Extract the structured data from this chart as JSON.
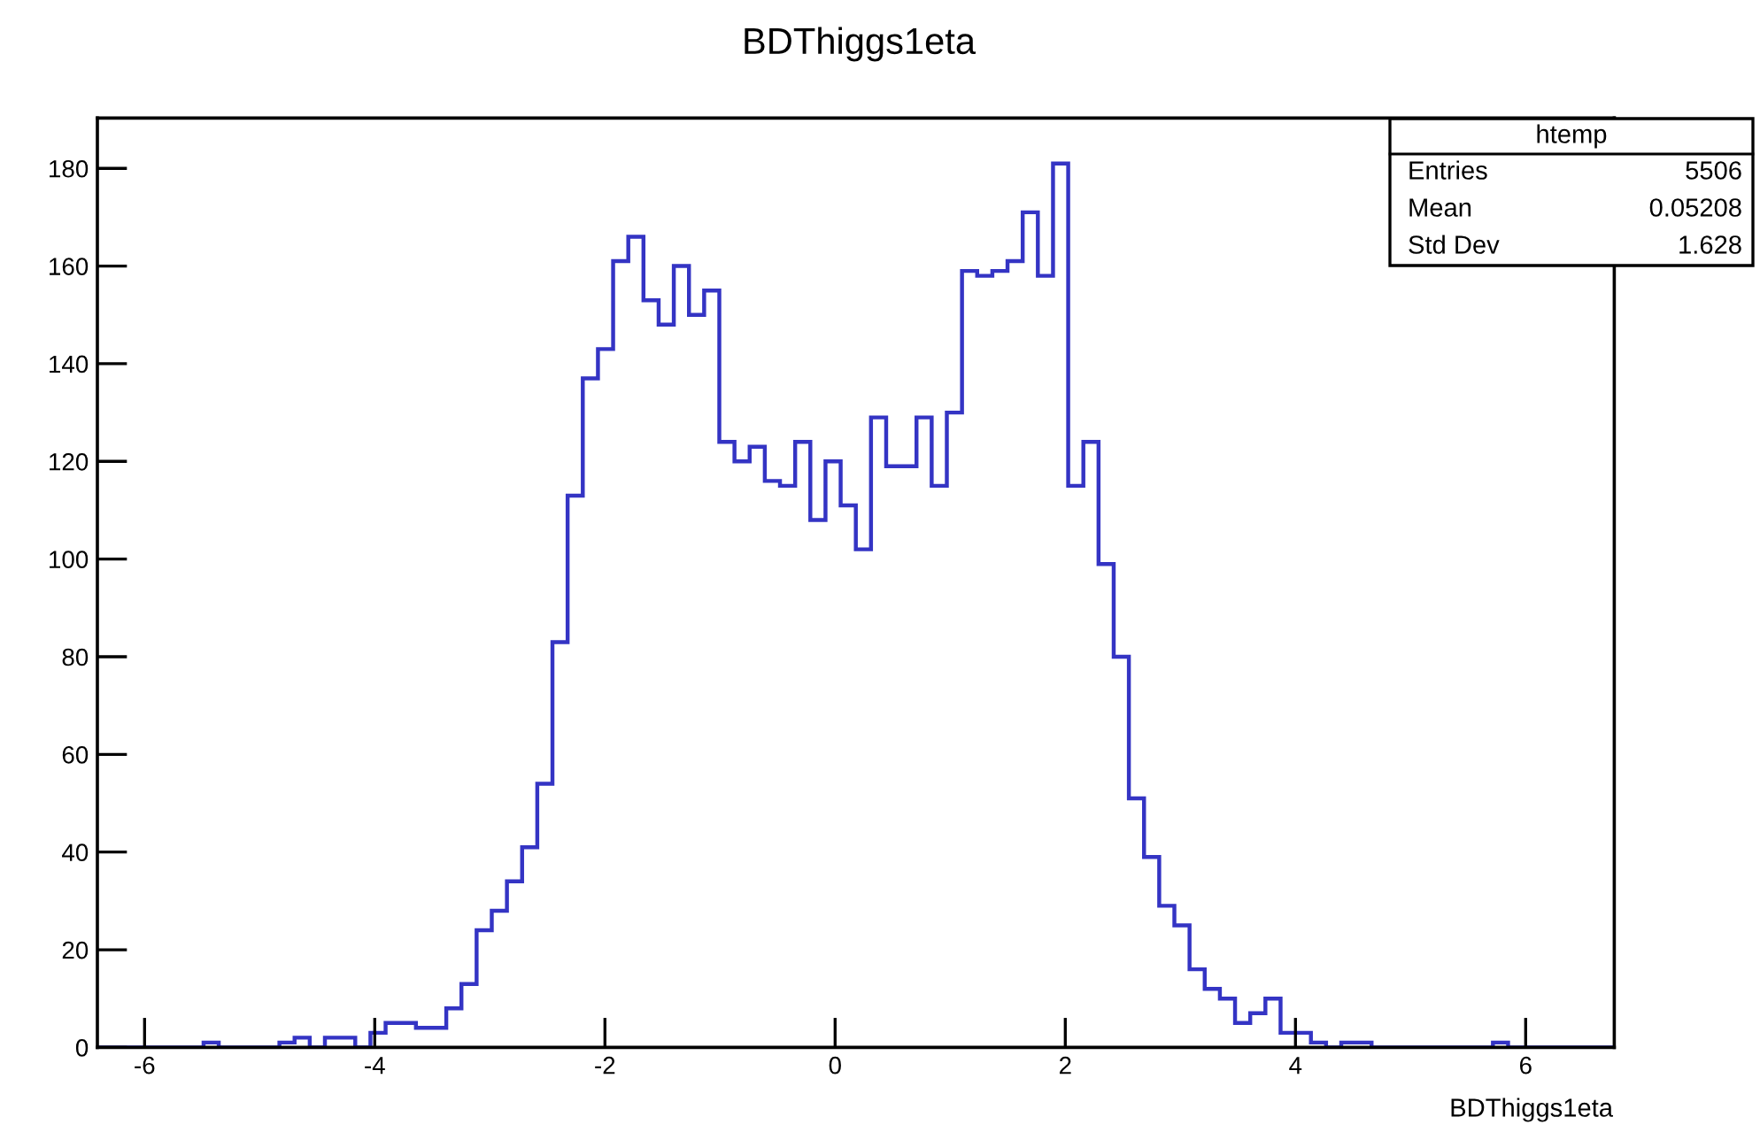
{
  "chart_data": {
    "type": "histogram",
    "title": "BDThiggs1eta",
    "xlabel": "BDThiggs1eta",
    "bins": [
      -6.41,
      -6.2782,
      -6.1464,
      -6.0146,
      -5.8828,
      -5.751,
      -5.6192,
      -5.4874,
      -5.3556,
      -5.2238,
      -5.092,
      -4.9602,
      -4.8284,
      -4.6966,
      -4.5648,
      -4.433,
      -4.3012,
      -4.1694,
      -4.0376,
      -3.9058,
      -3.774,
      -3.6422,
      -3.5104,
      -3.3786,
      -3.2468,
      -3.115,
      -2.9832,
      -2.8514,
      -2.7196,
      -2.5878,
      -2.456,
      -2.3242,
      -2.1924,
      -2.0606,
      -1.9288,
      -1.797,
      -1.6652,
      -1.5334,
      -1.4016,
      -1.2698,
      -1.138,
      -1.0062,
      -0.8744,
      -0.7426,
      -0.6108,
      -0.479,
      -0.3472,
      -0.2154,
      -0.0836,
      0.0482,
      0.18,
      0.3118,
      0.4436,
      0.5754,
      0.7072,
      0.839,
      0.9708,
      1.1026,
      1.2344,
      1.3662,
      1.498,
      1.6298,
      1.7616,
      1.8934,
      2.0252,
      2.157,
      2.2888,
      2.4206,
      2.5524,
      2.6842,
      2.816,
      2.9478,
      3.0796,
      3.2114,
      3.3432,
      3.475,
      3.6068,
      3.7386,
      3.8704,
      4.0022,
      4.134,
      4.2658,
      4.3976,
      4.5294,
      4.6612,
      4.793,
      4.9248,
      5.0566,
      5.1884,
      5.3202,
      5.452,
      5.5838,
      5.7156,
      5.8474,
      5.9792,
      6.111,
      6.2428,
      6.3746,
      6.5064,
      6.6382,
      6.77
    ],
    "values": [
      0,
      0,
      0,
      0,
      0,
      0,
      0,
      1,
      0,
      0,
      0,
      0,
      1,
      2,
      0,
      2,
      2,
      0,
      3,
      5,
      5,
      4,
      4,
      8,
      13,
      24,
      28,
      34,
      41,
      54,
      83,
      113,
      137,
      143,
      161,
      166,
      153,
      148,
      160,
      150,
      155,
      124,
      120,
      123,
      116,
      115,
      124,
      108,
      120,
      111,
      102,
      129,
      119,
      119,
      129,
      115,
      130,
      159,
      158,
      159,
      161,
      171,
      158,
      181,
      115,
      124,
      99,
      80,
      51,
      39,
      29,
      25,
      16,
      12,
      10,
      5,
      7,
      10,
      3,
      3,
      1,
      0,
      1,
      1,
      0,
      0,
      0,
      0,
      0,
      0,
      0,
      0,
      1,
      0,
      0,
      0,
      0,
      0,
      0,
      0
    ],
    "color": "#3434c4",
    "xlim": [
      -6.41,
      6.77
    ],
    "ylim": [
      0,
      190.3
    ],
    "xticks": [
      -6,
      -4,
      -2,
      0,
      2,
      4,
      6
    ],
    "yticks": [
      0,
      20,
      40,
      60,
      80,
      100,
      120,
      140,
      160,
      180
    ],
    "grid": false,
    "annotations": [
      "htemp",
      "Entries",
      "5506",
      "Mean",
      "0.05208",
      "Std Dev",
      "1.628"
    ]
  }
}
